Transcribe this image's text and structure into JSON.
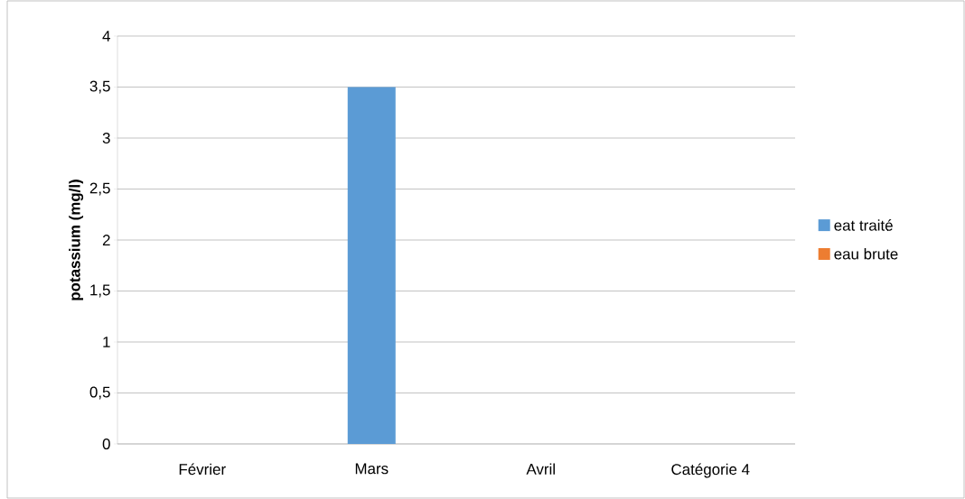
{
  "chart_data": {
    "type": "bar",
    "ylabel": "potassium (mg/l)",
    "categories": [
      "Février",
      "Mars",
      "Avril",
      "Catégorie 4"
    ],
    "series": [
      {
        "name": "eat traité",
        "color": "#5b9bd5",
        "values": [
          null,
          3.5,
          null,
          null
        ]
      },
      {
        "name": "eau brute",
        "color": "#ed7d31",
        "values": [
          null,
          null,
          null,
          null
        ]
      }
    ],
    "ylim": [
      0,
      4
    ],
    "yticks": [
      0,
      {
        "value": 0.5,
        "label": "0,5"
      },
      1,
      {
        "value": 1.5,
        "label": "1,5"
      },
      2,
      {
        "value": 2.5,
        "label": "2,5"
      },
      3,
      {
        "value": 3.5,
        "label": "3,5"
      },
      4
    ],
    "grid": "y",
    "legend": "right"
  }
}
